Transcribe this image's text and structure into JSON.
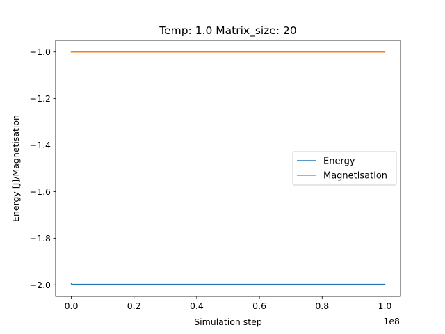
{
  "chart_data": {
    "type": "line",
    "title": "Temp: 1.0 Matrix_size: 20",
    "xlabel": "Simulation step",
    "ylabel": "Energy [J]/Magnetisation",
    "x_offset_text": "1e8",
    "xlim": [
      -0.05,
      1.05
    ],
    "ylim": [
      -2.05,
      -0.95
    ],
    "x_ticks": [
      0.0,
      0.2,
      0.4,
      0.6,
      0.8,
      1.0
    ],
    "x_tick_labels": [
      "0.0",
      "0.2",
      "0.4",
      "0.6",
      "0.8",
      "1.0"
    ],
    "y_ticks": [
      -2.0,
      -1.8,
      -1.6,
      -1.4,
      -1.2,
      -1.0
    ],
    "y_tick_labels": [
      "−2.0",
      "−1.8",
      "−1.6",
      "−1.4",
      "−1.2",
      "−1.0"
    ],
    "grid": false,
    "legend_position": "center-right",
    "series": [
      {
        "name": "Energy",
        "color": "#1f77b4",
        "x": [
          0.0,
          0.002,
          0.005,
          1.0
        ],
        "y": [
          -1.994,
          -2.0,
          -1.998,
          -1.998
        ]
      },
      {
        "name": "Magnetisation",
        "color": "#ff7f0e",
        "x": [
          0.0,
          1.0
        ],
        "y": [
          -1.0,
          -1.0
        ]
      }
    ]
  }
}
